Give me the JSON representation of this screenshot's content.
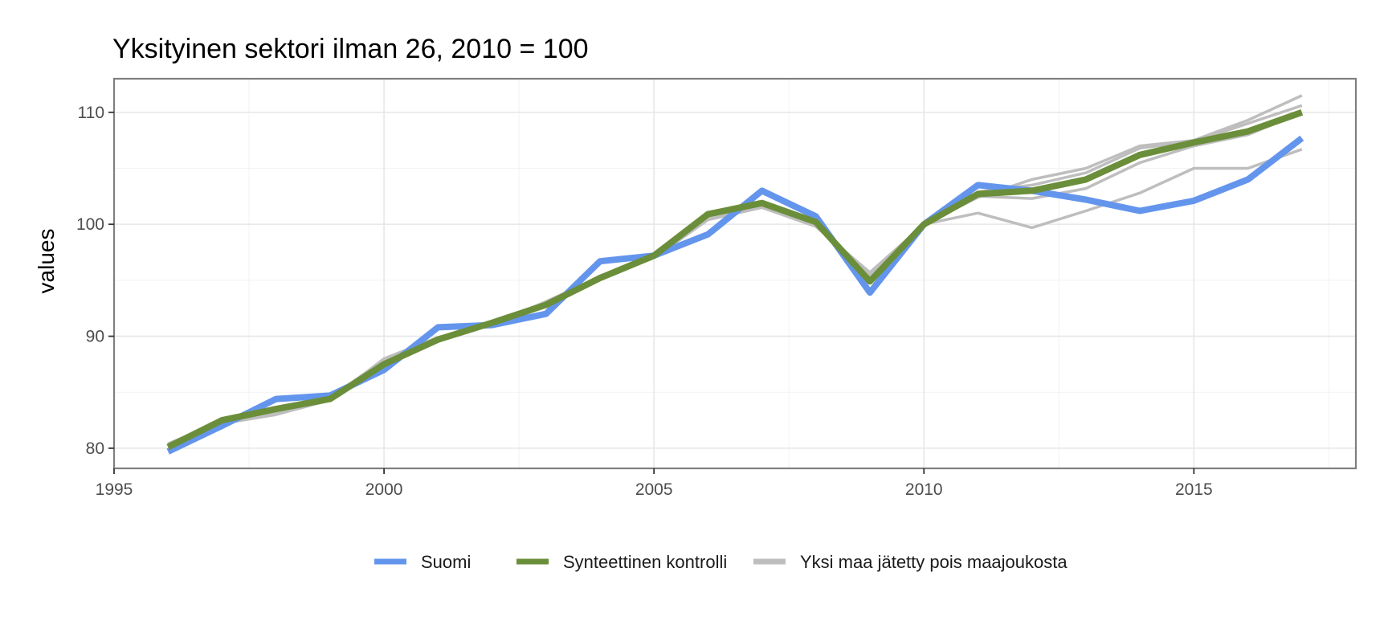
{
  "chart_data": {
    "type": "line",
    "title": "Yksityinen sektori ilman 26, 2010 = 100",
    "xlabel": "",
    "ylabel": "values",
    "xlim": [
      1995,
      2018
    ],
    "ylim": [
      78.2,
      113
    ],
    "x_ticks": [
      1995,
      2000,
      2005,
      2010,
      2015
    ],
    "y_ticks": [
      80,
      90,
      100,
      110
    ],
    "grid": true,
    "legend_position": "bottom",
    "colors": {
      "suomi": "#6495ED",
      "synthetic": "#6B8E3A",
      "leave_out": "#BEBEBE",
      "grid": "#e6e6e6",
      "panel_border": "#7f7f7f"
    },
    "x": [
      1996,
      1997,
      1998,
      1999,
      2000,
      2001,
      2002,
      2003,
      2004,
      2005,
      2006,
      2007,
      2008,
      2009,
      2010,
      2011,
      2012,
      2013,
      2014,
      2015,
      2016,
      2017
    ],
    "series": [
      {
        "name": "Suomi",
        "role": "main",
        "values": [
          79.7,
          82.0,
          84.4,
          84.7,
          87.0,
          90.8,
          91.0,
          92.0,
          96.7,
          97.2,
          99.1,
          103.0,
          100.7,
          93.9,
          100.0,
          103.5,
          103.0,
          102.2,
          101.2,
          102.1,
          104.0,
          107.7
        ]
      },
      {
        "name": "Synteettinen kontrolli",
        "role": "main",
        "values": [
          80.1,
          82.5,
          83.5,
          84.4,
          87.5,
          89.7,
          91.2,
          92.8,
          95.2,
          97.2,
          100.9,
          101.9,
          100.2,
          94.9,
          100.0,
          102.7,
          103.0,
          104.0,
          106.2,
          107.3,
          108.3,
          110.0
        ]
      },
      {
        "name": "Yksi maa jätetty pois maajoukosta",
        "role": "placebo",
        "values": [
          80.3,
          82.2,
          83.0,
          84.3,
          88.0,
          89.9,
          91.1,
          92.9,
          95.4,
          97.0,
          100.4,
          101.5,
          99.8,
          95.7,
          100.0,
          102.4,
          104.0,
          105.0,
          107.0,
          107.5,
          109.3,
          111.5
        ]
      },
      {
        "name": "",
        "role": "placebo",
        "values": [
          80.4,
          82.4,
          83.2,
          84.5,
          87.9,
          89.8,
          91.0,
          93.1,
          95.3,
          97.1,
          100.6,
          101.7,
          100.0,
          95.4,
          100.0,
          101.0,
          99.7,
          101.2,
          102.8,
          105.0,
          105.0,
          106.7
        ]
      },
      {
        "name": "",
        "role": "placebo",
        "values": [
          80.2,
          82.3,
          83.1,
          84.4,
          87.8,
          89.9,
          91.1,
          93.0,
          95.2,
          97.0,
          100.5,
          101.8,
          100.1,
          95.2,
          100.0,
          102.5,
          102.3,
          103.2,
          105.5,
          107.0,
          108.0,
          110.0
        ]
      },
      {
        "name": "",
        "role": "placebo",
        "values": [
          80.3,
          82.5,
          83.3,
          84.3,
          87.7,
          89.7,
          91.2,
          92.9,
          95.3,
          97.1,
          100.7,
          101.6,
          100.0,
          95.5,
          100.0,
          102.9,
          103.5,
          104.6,
          106.8,
          107.4,
          109.0,
          110.6
        ]
      }
    ]
  }
}
